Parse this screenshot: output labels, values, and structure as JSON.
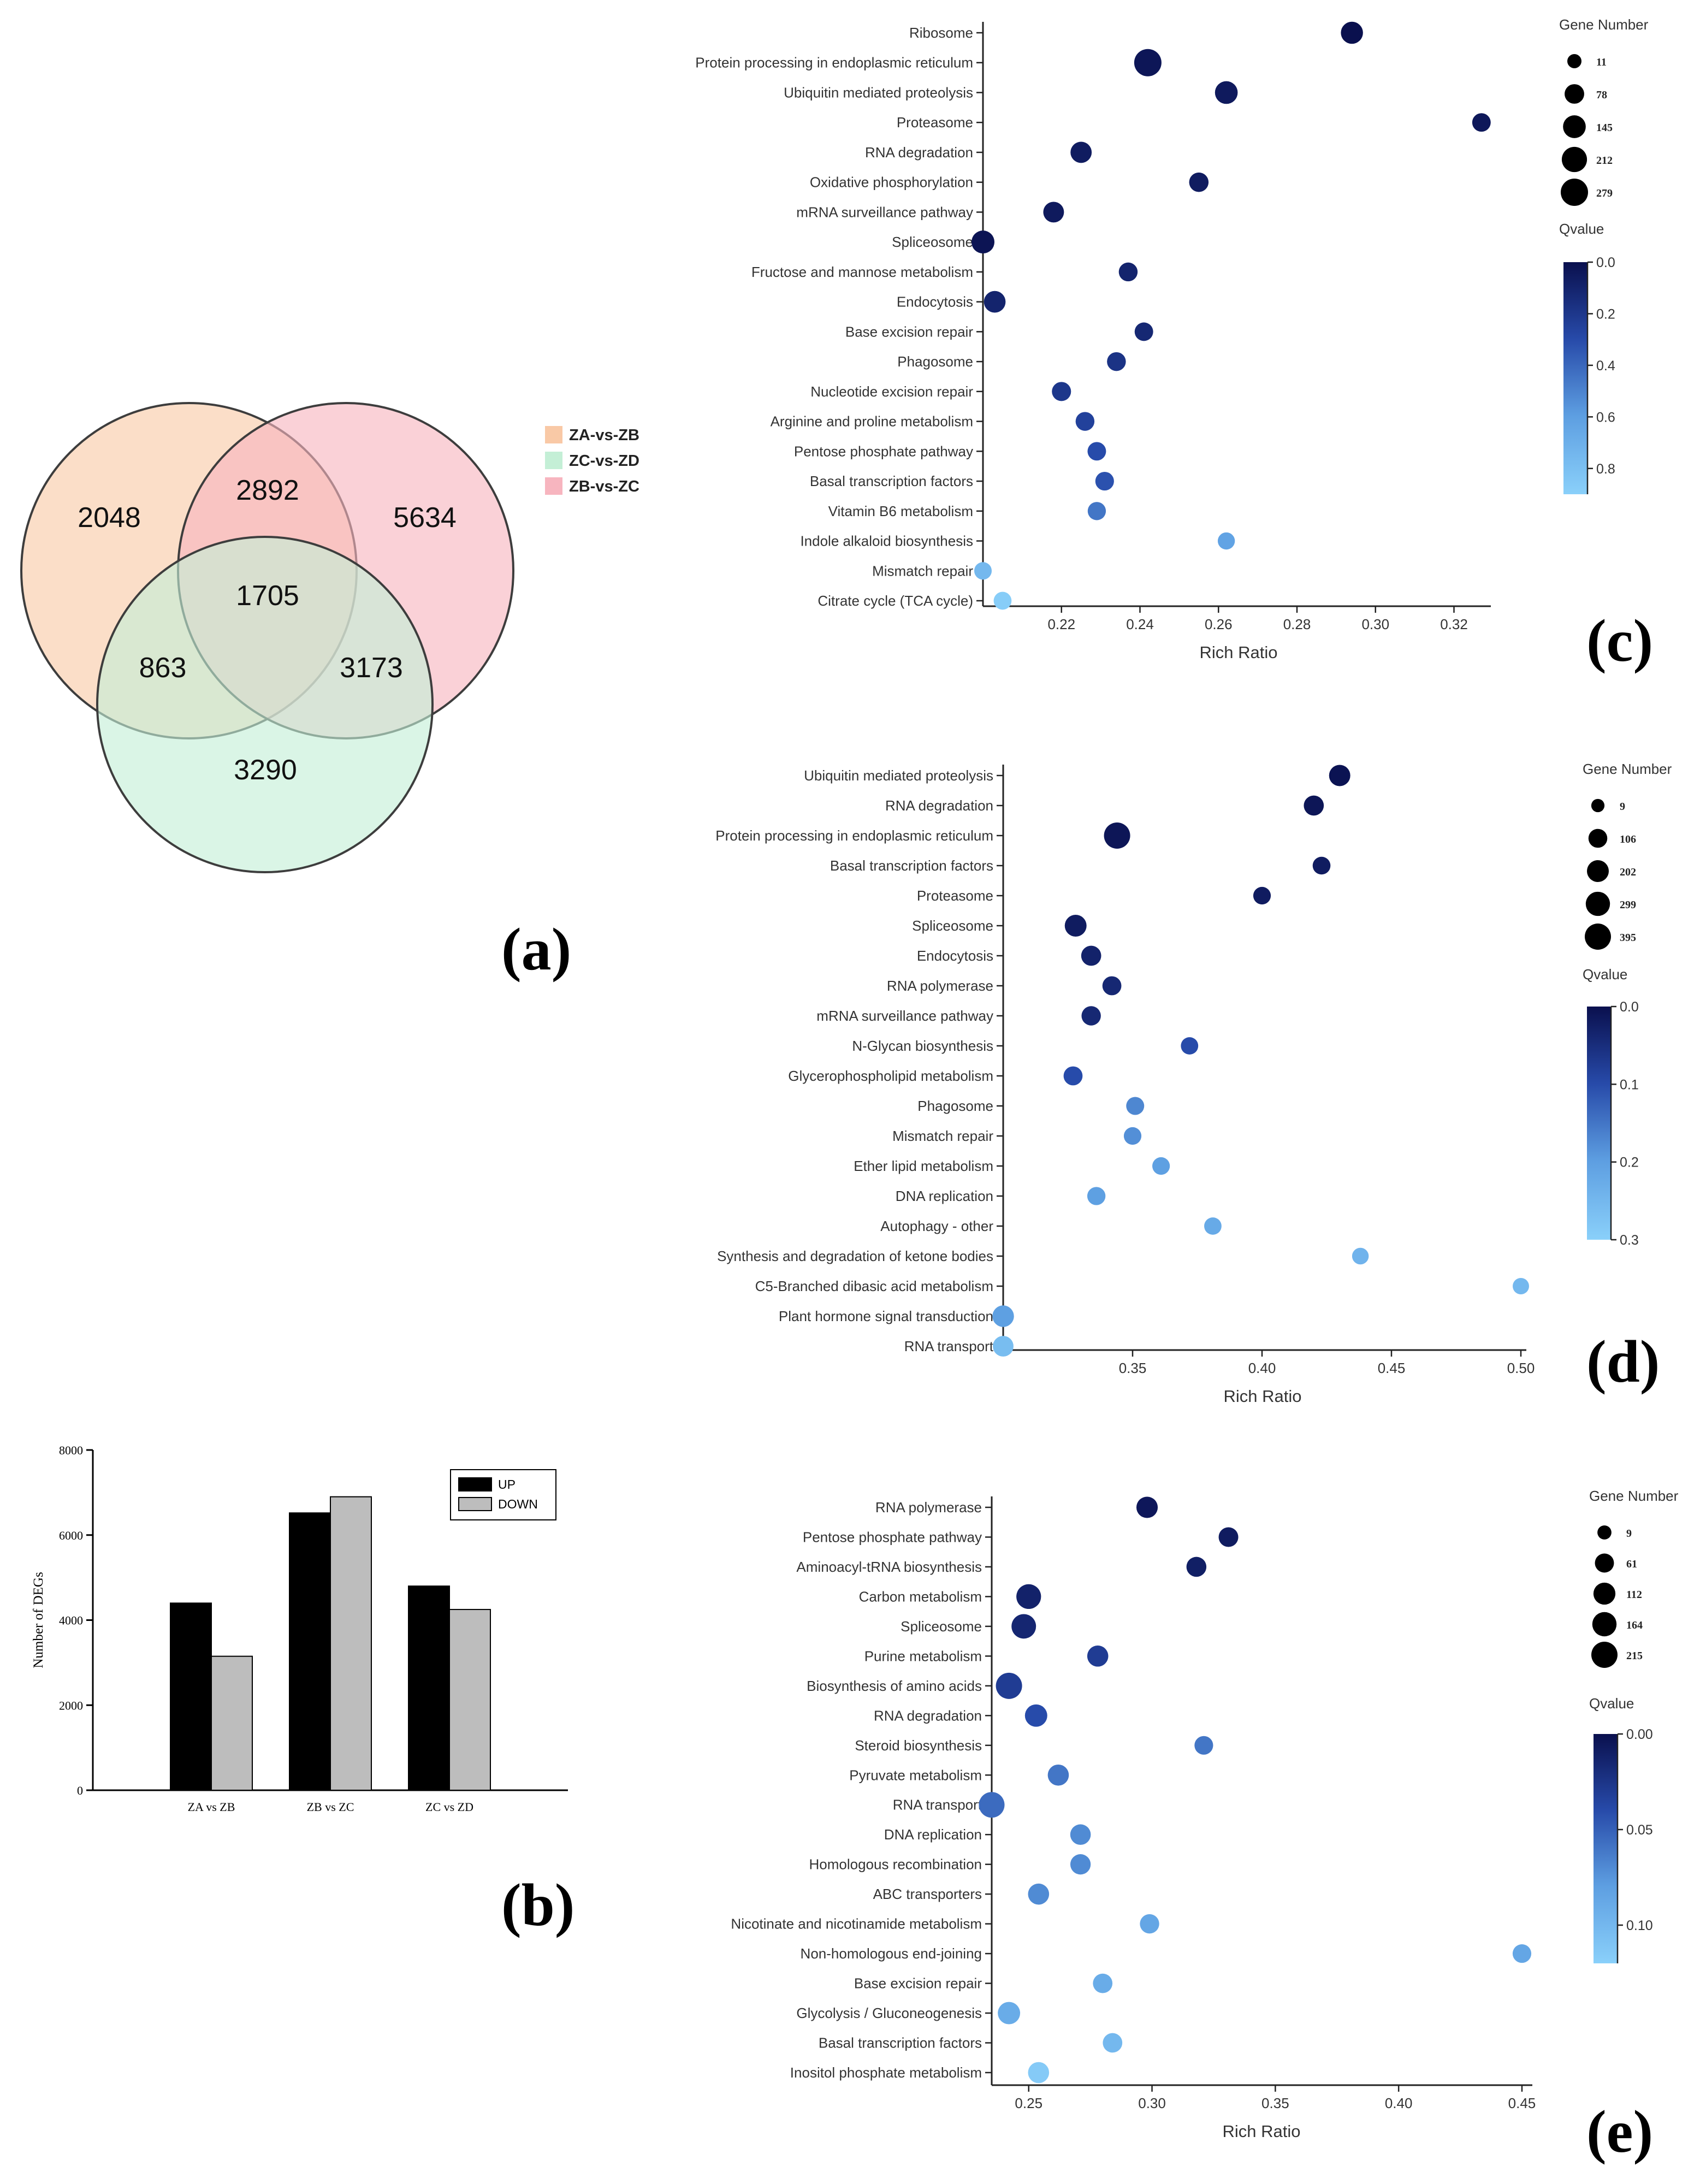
{
  "panel_labels": {
    "a": "(a)",
    "b": "(b)",
    "c": "(c)",
    "d": "(d)",
    "e": "(e)"
  },
  "chart_data": [
    {
      "id": "a",
      "type": "venn",
      "sets": [
        {
          "name": "ZA-vs-ZB",
          "color": "#f9c9a6"
        },
        {
          "name": "ZC-vs-ZD",
          "color": "#c4efd6"
        },
        {
          "name": "ZB-vs-ZC",
          "color": "#f7b5bf"
        }
      ],
      "regions": {
        "za_only": "2048",
        "zb_only": "5634",
        "zc_only": "3290",
        "za_zb": "2892",
        "za_zc": "863",
        "zb_zc": "3173",
        "all": "1705"
      }
    },
    {
      "id": "b",
      "type": "bar",
      "ylabel": "Number of DEGs",
      "categories": [
        "ZA vs ZB",
        "ZB vs ZC",
        "ZC vs ZD"
      ],
      "series": [
        {
          "name": "UP",
          "color": "#000000",
          "values": [
            4400,
            6520,
            4800
          ]
        },
        {
          "name": "DOWN",
          "color": "#bdbdbd",
          "values": [
            3150,
            6900,
            4250
          ]
        }
      ],
      "ylim": [
        0,
        8000
      ],
      "yticks": [
        0,
        2000,
        4000,
        6000,
        8000
      ]
    },
    {
      "id": "c",
      "type": "scatter",
      "xlabel": "Rich Ratio",
      "xlim": [
        0.2,
        0.328
      ],
      "xticks": [
        0.22,
        0.24,
        0.26,
        0.28,
        0.3,
        0.32
      ],
      "size_title": "Gene Number",
      "size_legend": [
        11,
        78,
        145,
        212,
        279
      ],
      "color_title": "Qvalue",
      "color_ticks": [
        "0.0",
        "0.2",
        "0.4",
        "0.6",
        "0.8"
      ],
      "qmax": 0.9,
      "points": [
        {
          "label": "Ribosome",
          "x": 0.294,
          "n": 130,
          "q": 0.0
        },
        {
          "label": "Protein processing in endoplasmic reticulum",
          "x": 0.242,
          "n": 279,
          "q": 0.03
        },
        {
          "label": "Ubiquitin mediated proteolysis",
          "x": 0.262,
          "n": 145,
          "q": 0.05
        },
        {
          "label": "Proteasome",
          "x": 0.327,
          "n": 60,
          "q": 0.04
        },
        {
          "label": "RNA degradation",
          "x": 0.225,
          "n": 110,
          "q": 0.06
        },
        {
          "label": "Oxidative phosphorylation",
          "x": 0.255,
          "n": 75,
          "q": 0.06
        },
        {
          "label": "mRNA surveillance pathway",
          "x": 0.218,
          "n": 100,
          "q": 0.05
        },
        {
          "label": "Spliceosome",
          "x": 0.2,
          "n": 150,
          "q": 0.02
        },
        {
          "label": "Fructose and mannose metabolism",
          "x": 0.237,
          "n": 65,
          "q": 0.1
        },
        {
          "label": "Endocytosis",
          "x": 0.203,
          "n": 120,
          "q": 0.1
        },
        {
          "label": "Base excision repair",
          "x": 0.241,
          "n": 60,
          "q": 0.12
        },
        {
          "label": "Phagosome",
          "x": 0.234,
          "n": 65,
          "q": 0.18
        },
        {
          "label": "Nucleotide excision repair",
          "x": 0.22,
          "n": 70,
          "q": 0.2
        },
        {
          "label": "Arginine and proline metabolism",
          "x": 0.226,
          "n": 65,
          "q": 0.25
        },
        {
          "label": "Pentose phosphate pathway",
          "x": 0.229,
          "n": 60,
          "q": 0.3
        },
        {
          "label": "Basal transcription factors",
          "x": 0.231,
          "n": 62,
          "q": 0.32
        },
        {
          "label": "Vitamin B6 metabolism",
          "x": 0.229,
          "n": 55,
          "q": 0.45
        },
        {
          "label": "Indole alkaloid biosynthesis",
          "x": 0.262,
          "n": 40,
          "q": 0.62
        },
        {
          "label": "Mismatch repair",
          "x": 0.2,
          "n": 45,
          "q": 0.75
        },
        {
          "label": "Citrate cycle (TCA cycle)",
          "x": 0.205,
          "n": 50,
          "q": 0.88
        }
      ]
    },
    {
      "id": "d",
      "type": "scatter",
      "xlabel": "Rich Ratio",
      "xlim": [
        0.3,
        0.5
      ],
      "xticks": [
        0.35,
        0.4,
        0.45,
        0.5
      ],
      "size_title": "Gene Number",
      "size_legend": [
        9,
        106,
        202,
        299,
        395
      ],
      "color_title": "Qvalue",
      "color_ticks": [
        "0.0",
        "0.1",
        "0.2",
        "0.3"
      ],
      "qmax": 0.3,
      "points": [
        {
          "label": "Ubiquitin mediated proteolysis",
          "x": 0.43,
          "n": 180,
          "q": 0.005
        },
        {
          "label": "RNA degradation",
          "x": 0.42,
          "n": 140,
          "q": 0.01
        },
        {
          "label": "Protein processing in endoplasmic reticulum",
          "x": 0.344,
          "n": 395,
          "q": 0.01
        },
        {
          "label": "Basal transcription factors",
          "x": 0.423,
          "n": 80,
          "q": 0.02
        },
        {
          "label": "Proteasome",
          "x": 0.4,
          "n": 75,
          "q": 0.02
        },
        {
          "label": "Spliceosome",
          "x": 0.328,
          "n": 200,
          "q": 0.02
        },
        {
          "label": "Endocytosis",
          "x": 0.334,
          "n": 140,
          "q": 0.03
        },
        {
          "label": "RNA polymerase",
          "x": 0.342,
          "n": 110,
          "q": 0.04
        },
        {
          "label": "mRNA surveillance pathway",
          "x": 0.334,
          "n": 120,
          "q": 0.04
        },
        {
          "label": "N-Glycan biosynthesis",
          "x": 0.372,
          "n": 70,
          "q": 0.1
        },
        {
          "label": "Glycerophospholipid metabolism",
          "x": 0.327,
          "n": 110,
          "q": 0.1
        },
        {
          "label": "Phagosome",
          "x": 0.351,
          "n": 85,
          "q": 0.17
        },
        {
          "label": "Mismatch repair",
          "x": 0.35,
          "n": 75,
          "q": 0.18
        },
        {
          "label": "Ether lipid metabolism",
          "x": 0.361,
          "n": 75,
          "q": 0.2
        },
        {
          "label": "DNA replication",
          "x": 0.336,
          "n": 90,
          "q": 0.2
        },
        {
          "label": "Autophagy - other",
          "x": 0.381,
          "n": 70,
          "q": 0.22
        },
        {
          "label": "Synthesis and degradation of ketone bodies",
          "x": 0.438,
          "n": 55,
          "q": 0.24
        },
        {
          "label": "C5-Branched dibasic acid metabolism",
          "x": 0.5,
          "n": 50,
          "q": 0.25
        },
        {
          "label": "Plant hormone signal transduction",
          "x": 0.3,
          "n": 190,
          "q": 0.2
        },
        {
          "label": "RNA transport",
          "x": 0.3,
          "n": 160,
          "q": 0.26
        }
      ]
    },
    {
      "id": "e",
      "type": "scatter",
      "xlabel": "Rich Ratio",
      "xlim": [
        0.235,
        0.452
      ],
      "xticks": [
        0.25,
        0.3,
        0.35,
        0.4,
        0.45
      ],
      "size_title": "Gene Number",
      "size_legend": [
        9,
        61,
        112,
        164,
        215
      ],
      "color_title": "Qvalue",
      "color_ticks": [
        "0.00",
        "0.05",
        "0.10"
      ],
      "qmax": 0.12,
      "points": [
        {
          "label": "RNA polymerase",
          "x": 0.298,
          "n": 100,
          "q": 0.005
        },
        {
          "label": "Pentose phosphate pathway",
          "x": 0.331,
          "n": 70,
          "q": 0.008
        },
        {
          "label": "Aminoacyl-tRNA biosynthesis",
          "x": 0.318,
          "n": 75,
          "q": 0.01
        },
        {
          "label": "Carbon metabolism",
          "x": 0.25,
          "n": 175,
          "q": 0.012
        },
        {
          "label": "Spliceosome",
          "x": 0.248,
          "n": 170,
          "q": 0.015
        },
        {
          "label": "Purine metabolism",
          "x": 0.278,
          "n": 95,
          "q": 0.03
        },
        {
          "label": "Biosynthesis of amino acids",
          "x": 0.242,
          "n": 215,
          "q": 0.03
        },
        {
          "label": "RNA degradation",
          "x": 0.253,
          "n": 120,
          "q": 0.04
        },
        {
          "label": "Steroid biosynthesis",
          "x": 0.321,
          "n": 55,
          "q": 0.06
        },
        {
          "label": "Pyruvate metabolism",
          "x": 0.262,
          "n": 95,
          "q": 0.06
        },
        {
          "label": "RNA transport",
          "x": 0.235,
          "n": 200,
          "q": 0.055
        },
        {
          "label": "DNA replication",
          "x": 0.271,
          "n": 85,
          "q": 0.07
        },
        {
          "label": "Homologous recombination",
          "x": 0.271,
          "n": 82,
          "q": 0.07
        },
        {
          "label": "ABC transporters",
          "x": 0.254,
          "n": 95,
          "q": 0.07
        },
        {
          "label": "Nicotinate and nicotinamide metabolism",
          "x": 0.299,
          "n": 65,
          "q": 0.085
        },
        {
          "label": "Non-homologous end-joining",
          "x": 0.45,
          "n": 55,
          "q": 0.085
        },
        {
          "label": "Base excision repair",
          "x": 0.28,
          "n": 68,
          "q": 0.09
        },
        {
          "label": "Glycolysis / Gluconeogenesis",
          "x": 0.242,
          "n": 120,
          "q": 0.09
        },
        {
          "label": "Basal transcription factors",
          "x": 0.284,
          "n": 68,
          "q": 0.1
        },
        {
          "label": "Inositol phosphate metabolism",
          "x": 0.254,
          "n": 95,
          "q": 0.115
        }
      ]
    }
  ]
}
